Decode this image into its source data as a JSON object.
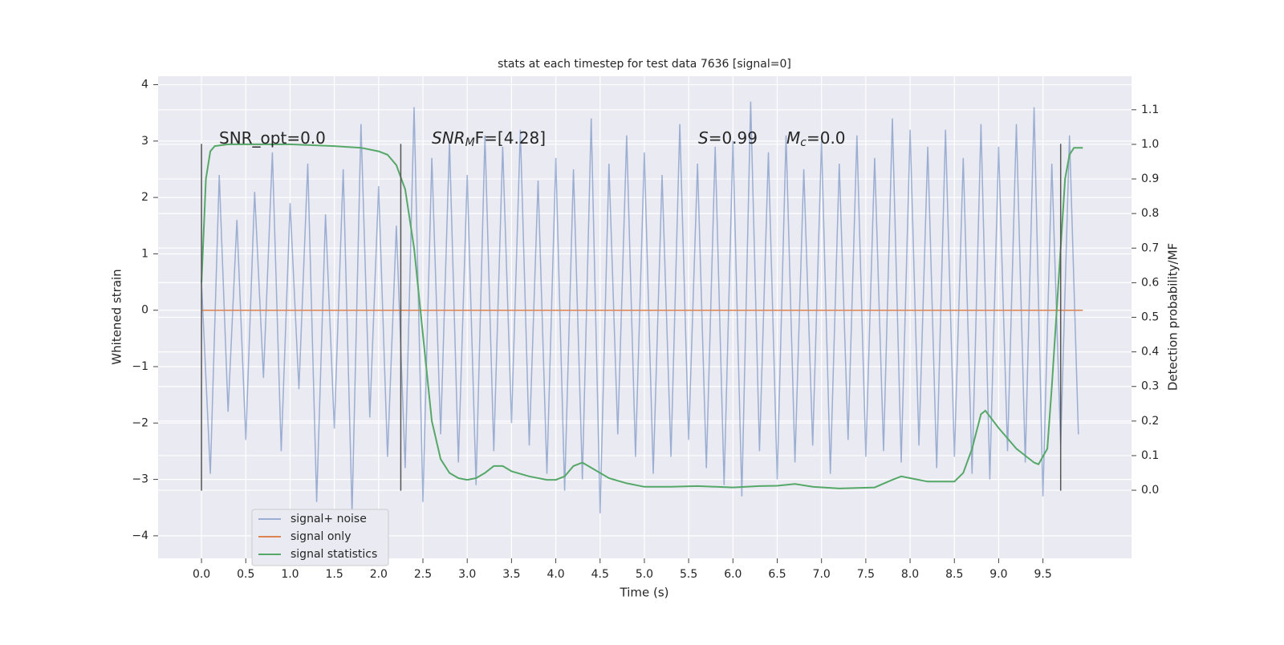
{
  "chart_data": {
    "type": "line",
    "title": "stats at each timestep for test data 7636 [signal=0]",
    "xlabel": "Time (s)",
    "ylabel": "Whitened strain",
    "y2label": "Detection probability/MF",
    "xlim": [
      -0.49,
      10.5
    ],
    "ylim": [
      -4.4,
      4.15
    ],
    "y2lim": [
      -0.197,
      1.197
    ],
    "xticks": [
      {
        "value": 0,
        "label": "0.0"
      },
      0.5,
      {
        "value": 1,
        "label": "1.0"
      },
      1.5,
      {
        "value": 2,
        "label": "2.0"
      },
      2.5,
      {
        "value": 3,
        "label": "3.0"
      },
      3.5,
      {
        "value": 4,
        "label": "4.0"
      },
      4.5,
      {
        "value": 5,
        "label": "5.0"
      },
      5.5,
      {
        "value": 6,
        "label": "6.0"
      },
      6.5,
      {
        "value": 7,
        "label": "7.0"
      },
      7.5,
      {
        "value": 8,
        "label": "8.0"
      },
      8.5,
      {
        "value": 9,
        "label": "9.0"
      },
      9.5
    ],
    "yticks": [
      {
        "value": -4,
        "label": "−4"
      },
      {
        "value": -3,
        "label": "−3"
      },
      {
        "value": -2,
        "label": "−2"
      },
      {
        "value": -1,
        "label": "−1"
      },
      0,
      1,
      2,
      3,
      4
    ],
    "y2ticks": [
      {
        "value": 0,
        "label": "0.0"
      },
      0.1,
      0.2,
      0.3,
      0.4,
      0.5,
      0.6,
      0.7,
      0.8,
      0.9,
      {
        "value": 1,
        "label": "1.0"
      },
      1.1
    ],
    "grid": true,
    "legend": "lower left",
    "series": [
      {
        "name": "signal+ noise",
        "color": "#4c72b0",
        "alpha": 0.5,
        "x": [
          0,
          0.1,
          0.2,
          0.3,
          0.4,
          0.5,
          0.6,
          0.7,
          0.8,
          0.9,
          1,
          1.1,
          1.2,
          1.3,
          1.4,
          1.5,
          1.6,
          1.7,
          1.8,
          1.9,
          2,
          2.1,
          2.2,
          2.3,
          2.4,
          2.5,
          2.6,
          2.7,
          2.8,
          2.9,
          3,
          3.1,
          3.2,
          3.3,
          3.4,
          3.5,
          3.6,
          3.7,
          3.8,
          3.9,
          4,
          4.1,
          4.2,
          4.3,
          4.4,
          4.5,
          4.6,
          4.7,
          4.8,
          4.9,
          5,
          5.1,
          5.2,
          5.3,
          5.4,
          5.5,
          5.6,
          5.7,
          5.8,
          5.9,
          6,
          6.1,
          6.2,
          6.3,
          6.4,
          6.5,
          6.6,
          6.7,
          6.8,
          6.9,
          7,
          7.1,
          7.2,
          7.3,
          7.4,
          7.5,
          7.6,
          7.7,
          7.8,
          7.9,
          8,
          8.1,
          8.2,
          8.3,
          8.4,
          8.5,
          8.6,
          8.7,
          8.8,
          8.9,
          9,
          9.1,
          9.2,
          9.3,
          9.4,
          9.5,
          9.6,
          9.7,
          9.8,
          9.9
        ],
        "values": [
          0.5,
          -2.9,
          2.4,
          -1.8,
          1.6,
          -2.3,
          2.1,
          -1.2,
          2.8,
          -2.5,
          1.9,
          -1.4,
          2.6,
          -3.4,
          1.7,
          -2.1,
          2.5,
          -3.6,
          3.3,
          -1.9,
          2.2,
          -2.6,
          1.5,
          -2.8,
          3.6,
          -3.4,
          2.7,
          -2.2,
          3.0,
          -2.7,
          2.4,
          -3.1,
          3.1,
          -2.5,
          2.9,
          -2.0,
          3.2,
          -2.4,
          2.3,
          -2.9,
          2.7,
          -3.2,
          2.5,
          -3.0,
          3.4,
          -3.6,
          2.6,
          -2.2,
          3.1,
          -2.6,
          2.8,
          -2.9,
          2.4,
          -2.6,
          3.3,
          -2.3,
          2.6,
          -2.8,
          2.9,
          -3.1,
          3.0,
          -3.3,
          3.7,
          -2.5,
          2.8,
          -3.0,
          3.1,
          -2.7,
          2.5,
          -2.4,
          3.0,
          -2.9,
          2.6,
          -2.3,
          3.1,
          -2.6,
          2.7,
          -2.5,
          3.4,
          -2.7,
          3.2,
          -2.4,
          2.9,
          -2.8,
          3.2,
          -2.6,
          2.7,
          -2.9,
          3.3,
          -3.0,
          2.9,
          -2.5,
          3.3,
          -2.7,
          3.6,
          -3.3,
          2.6,
          -2.4,
          3.1,
          -2.2
        ]
      },
      {
        "name": "signal only",
        "color": "#dd8452",
        "x": [
          0,
          9.95
        ],
        "values": [
          0,
          0
        ]
      },
      {
        "name": "signal statistics",
        "color": "#55a868",
        "axis": "y2",
        "x": [
          0,
          0.05,
          0.1,
          0.15,
          0.3,
          1.0,
          1.5,
          1.8,
          2.0,
          2.1,
          2.2,
          2.3,
          2.4,
          2.5,
          2.6,
          2.7,
          2.8,
          2.9,
          3.0,
          3.1,
          3.2,
          3.3,
          3.4,
          3.5,
          3.7,
          3.9,
          4.0,
          4.1,
          4.2,
          4.3,
          4.4,
          4.6,
          4.8,
          5.0,
          5.3,
          5.6,
          6.0,
          6.3,
          6.5,
          6.7,
          6.9,
          7.2,
          7.6,
          7.8,
          7.9,
          8.0,
          8.2,
          8.5,
          8.6,
          8.7,
          8.8,
          8.85,
          9.0,
          9.2,
          9.4,
          9.45,
          9.55,
          9.6,
          9.7,
          9.75,
          9.8,
          9.85,
          9.95
        ],
        "values": [
          0.6,
          0.9,
          0.98,
          0.995,
          1.0,
          1.0,
          0.995,
          0.99,
          0.98,
          0.97,
          0.94,
          0.87,
          0.7,
          0.45,
          0.2,
          0.09,
          0.05,
          0.035,
          0.03,
          0.035,
          0.05,
          0.07,
          0.07,
          0.055,
          0.04,
          0.03,
          0.03,
          0.04,
          0.07,
          0.08,
          0.065,
          0.035,
          0.02,
          0.01,
          0.01,
          0.012,
          0.008,
          0.012,
          0.013,
          0.018,
          0.01,
          0.005,
          0.008,
          0.03,
          0.04,
          0.035,
          0.025,
          0.025,
          0.05,
          0.12,
          0.22,
          0.23,
          0.18,
          0.12,
          0.08,
          0.075,
          0.12,
          0.3,
          0.7,
          0.9,
          0.97,
          0.99,
          0.99
        ]
      }
    ],
    "vlines": {
      "x": [
        0,
        2.25,
        9.7
      ],
      "ymin": -3.2,
      "ymax": 2.95,
      "color": "#555555"
    },
    "annotations": [
      {
        "text": "SNR_opt=0.0"
      },
      {
        "italic": "SNR",
        "sub": "M",
        "text": "F=[4.28]"
      },
      {
        "italic": "S",
        "text": "=0.99"
      },
      {
        "italic": "M",
        "sub": "c",
        "text": "=0.0"
      }
    ]
  }
}
